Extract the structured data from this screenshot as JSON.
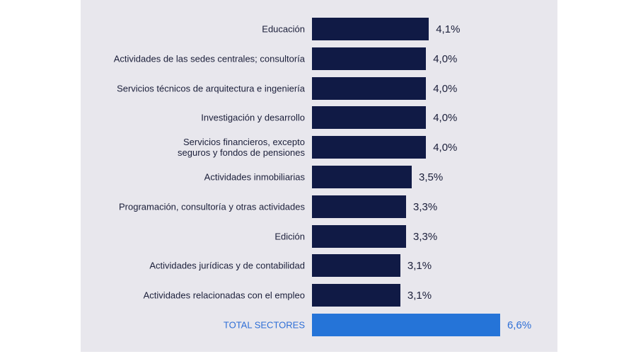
{
  "chart_data": {
    "type": "bar",
    "orientation": "horizontal",
    "categories": [
      "Educación",
      "Actividades de las sedes centrales; consultoría",
      "Servicios técnicos de arquitectura e ingeniería",
      "Investigación y desarrollo",
      "Servicios financieros, excepto seguros y fondos de pensiones",
      "Actividades inmobiliarias",
      "Programación, consultoría y otras actividades",
      "Edición",
      "Actividades jurídicas y de contabilidad",
      "Actividades relacionadas con el empleo",
      "TOTAL SECTORES"
    ],
    "values": [
      4.1,
      4.0,
      4.0,
      4.0,
      4.0,
      3.5,
      3.3,
      3.3,
      3.1,
      3.1,
      6.6
    ],
    "data_labels": [
      "4,1%",
      "4,0%",
      "4,0%",
      "4,0%",
      "4,0%",
      "3,5%",
      "3,3%",
      "3,3%",
      "3,1%",
      "3,1%",
      "6,6%"
    ],
    "grid": false,
    "colors": {
      "bar": "#101a45",
      "total_bar": "#2574d8",
      "total_text": "#2f6fd6",
      "text": "#1b1f3a",
      "background": "#e8e7ed"
    }
  }
}
